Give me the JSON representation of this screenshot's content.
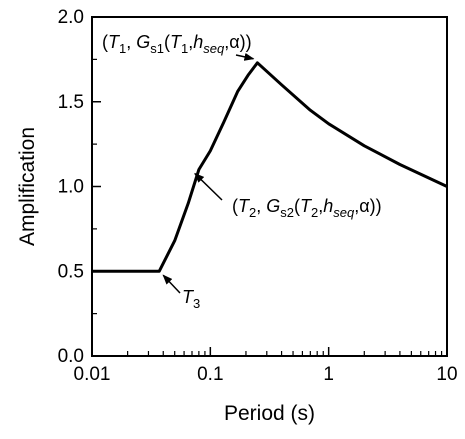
{
  "chart_data": {
    "type": "line",
    "xlabel": "Period (s)",
    "ylabel": "Amplification",
    "xscale": "log",
    "xlim": [
      0.01,
      10
    ],
    "ylim": [
      0.0,
      2.0
    ],
    "grid": false,
    "x_ticks": [
      0.01,
      0.1,
      1,
      10
    ],
    "x_tick_labels": [
      "0.01",
      "0.1",
      "1",
      "10"
    ],
    "y_ticks": [
      0.0,
      0.5,
      1.0,
      1.5,
      2.0
    ],
    "y_tick_labels": [
      "0.0",
      "0.5",
      "1.0",
      "1.5",
      "2.0"
    ],
    "series": [
      {
        "x": [
          0.01,
          0.037,
          0.05,
          0.065,
          0.08,
          0.1,
          0.13,
          0.17,
          0.21,
          0.25,
          0.4,
          0.7,
          1.0,
          2.0,
          4.0,
          10.0
        ],
        "y": [
          0.5,
          0.5,
          0.68,
          0.9,
          1.1,
          1.21,
          1.38,
          1.56,
          1.66,
          1.73,
          1.6,
          1.45,
          1.37,
          1.24,
          1.13,
          1.0
        ]
      }
    ],
    "annotations": [
      {
        "parts": [
          "(",
          "T",
          "1",
          ", ",
          "G",
          "s1",
          "(",
          "T",
          "1",
          ",",
          "h",
          "seq",
          ",α))"
        ]
      },
      {
        "parts": [
          "(",
          "T",
          "2",
          ", ",
          "G",
          "s2",
          "(",
          "T",
          "2",
          ",",
          "h",
          "seq",
          ",α))"
        ]
      },
      {
        "parts": [
          "T",
          "3"
        ]
      }
    ],
    "annotation_points": [
      {
        "x": 0.25,
        "y": 1.73
      },
      {
        "x": 0.08,
        "y": 1.1
      },
      {
        "x": 0.037,
        "y": 0.5
      }
    ]
  }
}
